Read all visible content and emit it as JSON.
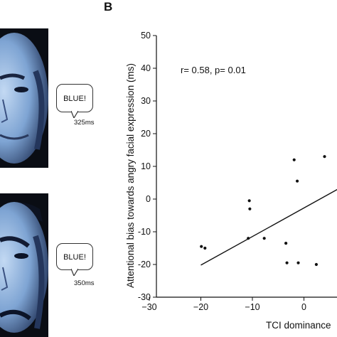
{
  "panel_a": {
    "bubble_text_1": "BLUE!",
    "timing_1": "325ms",
    "bubble_text_2": "BLUE!",
    "timing_2": "350ms"
  },
  "panel_b": {
    "letter": "B",
    "annotation": "r= 0.58, p= 0.01"
  },
  "chart_data": {
    "type": "scatter",
    "title": "",
    "xlabel": "TCI dominance",
    "ylabel": "Attentional bias towards angry facial expression (ms)",
    "xlim": [
      -30,
      10
    ],
    "ylim": [
      -30,
      50
    ],
    "xticks": [
      -30,
      -20,
      -10,
      0
    ],
    "yticks": [
      -30,
      -20,
      -10,
      0,
      10,
      20,
      30,
      40,
      50
    ],
    "points": [
      {
        "x": -19.9,
        "y": -14.5
      },
      {
        "x": -19.2,
        "y": -15
      },
      {
        "x": -10.6,
        "y": -0.5
      },
      {
        "x": -10.5,
        "y": -3
      },
      {
        "x": -10.8,
        "y": -12
      },
      {
        "x": -7.7,
        "y": -12
      },
      {
        "x": -3.5,
        "y": -13.5
      },
      {
        "x": -3.3,
        "y": -19.5
      },
      {
        "x": -1.9,
        "y": 12
      },
      {
        "x": -1.3,
        "y": 5.5
      },
      {
        "x": -1.1,
        "y": -19.5
      },
      {
        "x": 2.4,
        "y": -20
      },
      {
        "x": 4.0,
        "y": 13
      }
    ],
    "regression_line": {
      "x": [
        -20,
        7
      ],
      "y": [
        -20.2,
        3.4
      ]
    },
    "grid": false,
    "legend": "none"
  },
  "colors": {
    "face_light": "#b9d2f0",
    "face_mid": "#6f97c9",
    "face_dark": "#1c2b4a",
    "background_dark": "#0a0d14"
  }
}
